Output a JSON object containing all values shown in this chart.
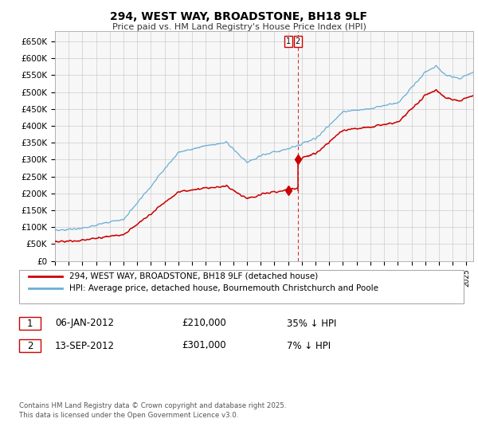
{
  "title": "294, WEST WAY, BROADSTONE, BH18 9LF",
  "subtitle": "Price paid vs. HM Land Registry's House Price Index (HPI)",
  "ylabel_ticks": [
    "£0",
    "£50K",
    "£100K",
    "£150K",
    "£200K",
    "£250K",
    "£300K",
    "£350K",
    "£400K",
    "£450K",
    "£500K",
    "£550K",
    "£600K",
    "£650K"
  ],
  "ytick_values": [
    0,
    50000,
    100000,
    150000,
    200000,
    250000,
    300000,
    350000,
    400000,
    450000,
    500000,
    550000,
    600000,
    650000
  ],
  "ylim": [
    0,
    680000
  ],
  "xlim_start": 1995,
  "xlim_end": 2025.5,
  "t1": 2012.02,
  "t2": 2012.71,
  "p1": 210000,
  "p2": 301000,
  "red_color": "#cc0000",
  "blue_color": "#6baed6",
  "dotted_line_color": "#cc0000",
  "grid_color": "#cccccc",
  "background_color": "#f7f7f7",
  "legend1": "294, WEST WAY, BROADSTONE, BH18 9LF (detached house)",
  "legend2": "HPI: Average price, detached house, Bournemouth Christchurch and Poole",
  "note1_date": "06-JAN-2012",
  "note1_price": "£210,000",
  "note1_pct": "35% ↓ HPI",
  "note2_date": "13-SEP-2012",
  "note2_price": "£301,000",
  "note2_pct": "7% ↓ HPI",
  "footer": "Contains HM Land Registry data © Crown copyright and database right 2025.\nThis data is licensed under the Open Government Licence v3.0."
}
